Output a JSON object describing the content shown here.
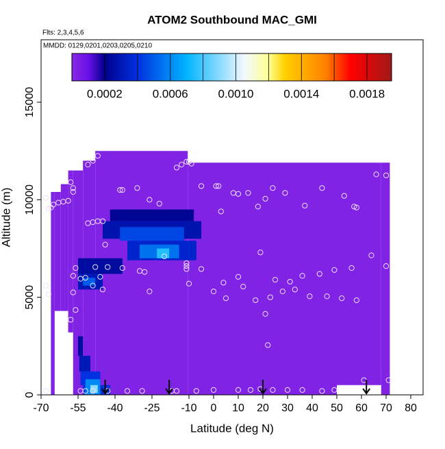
{
  "chart_data": {
    "type": "curtain",
    "title": "ATOM2 Southbound MAC_GMI",
    "subtitle": "Flts: 2,3,4,5,6",
    "annotation": "MMDD: 0129,0201,0203,0205,0210",
    "xlabel": "Latitude (deg N)",
    "ylabel": "Altitude (m)",
    "xlim": [
      -70,
      85
    ],
    "ylim": [
      0,
      18200
    ],
    "xticks": [
      -70,
      -55,
      -40,
      -25,
      -10,
      0,
      10,
      20,
      30,
      40,
      50,
      60,
      70,
      80
    ],
    "yticks": [
      0,
      5000,
      10000,
      15000
    ],
    "colorbar_lim": [
      0,
      0.00195
    ],
    "colorbar_ticks": [
      0.0002,
      0.0006,
      {
        "value": 0.001,
        "label": "0.0010"
      },
      0.0014,
      0.0018
    ],
    "colorbar_breaks": [
      0.0002,
      0.0004,
      0.0006,
      0.0008,
      0.001,
      0.0012,
      0.0014,
      0.0016,
      0.0018
    ],
    "colormap": [
      {
        "value": 0,
        "color": "#8a2be2"
      },
      {
        "value": 0.0001,
        "color": "#6a10e8"
      },
      {
        "value": 0.0002,
        "color": "#00008b"
      },
      {
        "value": 0.0004,
        "color": "#0030e0"
      },
      {
        "value": 0.0007,
        "color": "#00b4ff"
      },
      {
        "value": 0.00105,
        "color": "#f2f8ff"
      },
      {
        "value": 0.0012,
        "color": "#ffff90"
      },
      {
        "value": 0.0013,
        "color": "#ffd000"
      },
      {
        "value": 0.00155,
        "color": "#ff8000"
      },
      {
        "value": 0.0017,
        "color": "#ff0000"
      },
      {
        "value": 0.00195,
        "color": "#a01818"
      }
    ],
    "patches": [
      {
        "x": [
          -66,
          -64.5
        ],
        "y": [
          0,
          10400
        ],
        "value": 3e-05
      },
      {
        "x": [
          -64.5,
          -62
        ],
        "y": [
          4300,
          10400
        ],
        "value": 3e-05
      },
      {
        "x": [
          -62,
          -59
        ],
        "y": [
          4300,
          10800
        ],
        "value": 3e-05
      },
      {
        "x": [
          -59,
          -57
        ],
        "y": [
          3200,
          11500
        ],
        "value": 3e-05
      },
      {
        "x": [
          -57,
          -53
        ],
        "y": [
          0,
          11500
        ],
        "value": 3e-05
      },
      {
        "x": [
          -53,
          -48
        ],
        "y": [
          0,
          12000
        ],
        "value": 3e-05
      },
      {
        "x": [
          -48,
          -10.5
        ],
        "y": [
          0,
          12500
        ],
        "value": 3e-05
      },
      {
        "x": [
          -10.5,
          50
        ],
        "y": [
          0,
          11900
        ],
        "value": 3e-05
      },
      {
        "x": [
          50,
          68
        ],
        "y": [
          500,
          11900
        ],
        "value": 3e-05
      },
      {
        "x": [
          68,
          71.5
        ],
        "y": [
          0,
          11900
        ],
        "value": 3e-05
      },
      {
        "x": [
          -42,
          -8
        ],
        "y": [
          8900,
          9500
        ],
        "value": 0.00022
      },
      {
        "x": [
          -45,
          -5
        ],
        "y": [
          8000,
          8900
        ],
        "value": 0.00028
      },
      {
        "x": [
          -38,
          -12
        ],
        "y": [
          7900,
          8600
        ],
        "value": 0.00045
      },
      {
        "x": [
          -35,
          -7
        ],
        "y": [
          6900,
          7900
        ],
        "value": 0.00035
      },
      {
        "x": [
          -30,
          -14
        ],
        "y": [
          7000,
          7700
        ],
        "value": 0.00055
      },
      {
        "x": [
          -23,
          -18
        ],
        "y": [
          7000,
          7500
        ],
        "value": 0.00075
      },
      {
        "x": [
          -55,
          -37
        ],
        "y": [
          6200,
          7000
        ],
        "value": 0.00025
      },
      {
        "x": [
          -55,
          -45
        ],
        "y": [
          5400,
          6200
        ],
        "value": 0.0003
      },
      {
        "x": [
          -53,
          -48
        ],
        "y": [
          5600,
          6000
        ],
        "value": 0.0005
      },
      {
        "x": [
          -55,
          -53
        ],
        "y": [
          2000,
          3000
        ],
        "value": 0.00025
      },
      {
        "x": [
          -54.5,
          -50
        ],
        "y": [
          1200,
          2000
        ],
        "value": 0.0003
      },
      {
        "x": [
          -54,
          -46
        ],
        "y": [
          500,
          1200
        ],
        "value": 0.0004
      },
      {
        "x": [
          -53,
          -42
        ],
        "y": [
          0,
          500
        ],
        "value": 0.0004
      },
      {
        "x": [
          -52,
          -46
        ],
        "y": [
          0,
          800
        ],
        "value": 0.0006
      },
      {
        "x": [
          -50,
          -47
        ],
        "y": [
          100,
          500
        ],
        "value": 0.0009
      }
    ],
    "points": {
      "x": [
        -47,
        -49,
        -51,
        -58,
        -57,
        -57,
        -68,
        -67,
        -66,
        -65,
        -63,
        -61,
        -59,
        -51,
        -49,
        -47,
        -45,
        -44,
        -38,
        -37,
        -31,
        -26,
        -22,
        -15,
        -13,
        -11,
        -10,
        -9,
        -5,
        1,
        2,
        3,
        8,
        10,
        14,
        18,
        21,
        24,
        29,
        37,
        44,
        53,
        57,
        58,
        66,
        70,
        -68,
        -67,
        -58,
        -56,
        -57,
        -57,
        -56,
        -54,
        -52,
        -49,
        -48,
        -46,
        -45,
        -43,
        -37,
        -30,
        -28,
        -26,
        -20,
        -11,
        -11,
        -11,
        -10,
        -5,
        0,
        4,
        5,
        10,
        12,
        17,
        19,
        21,
        22,
        23,
        25,
        28,
        31,
        33,
        36,
        39,
        43,
        46,
        49,
        52,
        56,
        58,
        64,
        70,
        71,
        61,
        -68,
        -54,
        -52,
        -49,
        -43,
        -35,
        -29,
        -17,
        -15,
        -7,
        0,
        10,
        15,
        19,
        24,
        30,
        36,
        44,
        49
      ],
      "y": [
        12250,
        12000,
        11800,
        10900,
        10600,
        10400,
        10100,
        9550,
        9600,
        9750,
        9850,
        9900,
        9950,
        8800,
        8850,
        8900,
        8900,
        7700,
        10500,
        10500,
        10600,
        10000,
        9800,
        11650,
        11800,
        11950,
        11950,
        11850,
        10700,
        10700,
        10700,
        9400,
        10350,
        10300,
        10350,
        9650,
        10050,
        10600,
        10350,
        9700,
        10600,
        10200,
        9650,
        9600,
        11300,
        11250,
        5600,
        5150,
        3850,
        4350,
        5250,
        6100,
        6500,
        5950,
        6000,
        5600,
        6550,
        6050,
        5400,
        6550,
        6500,
        6350,
        6300,
        5300,
        7100,
        6750,
        6600,
        6450,
        5700,
        6450,
        5300,
        5750,
        4950,
        6050,
        5550,
        4850,
        7300,
        4150,
        2550,
        5000,
        5900,
        5300,
        5800,
        5400,
        6100,
        5050,
        6200,
        5050,
        6400,
        4950,
        6500,
        4850,
        7150,
        6600,
        750,
        750,
        200,
        200,
        200,
        200,
        200,
        200,
        200,
        200,
        200,
        200,
        250,
        250,
        250,
        300,
        250,
        250,
        250,
        200,
        250
      ]
    },
    "arrows_x": [
      -44,
      -18,
      20,
      62
    ]
  }
}
